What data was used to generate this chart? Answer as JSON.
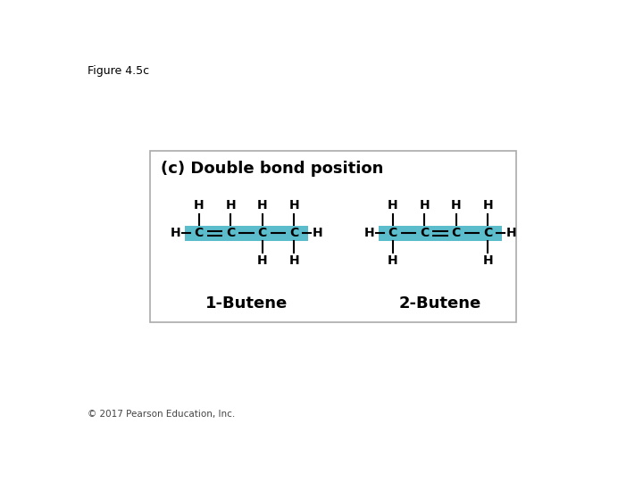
{
  "figure_label": "Figure 4.5c",
  "copyright": "© 2017 Pearson Education, Inc.",
  "section_title": "(c) Double bond position",
  "highlight_color": "#5bbccc",
  "box_edge_color": "#aaaaaa",
  "background_color": "#ffffff",
  "molecule1_label": "1-Butene",
  "molecule2_label": "2-Butene",
  "font_color": "#000000"
}
